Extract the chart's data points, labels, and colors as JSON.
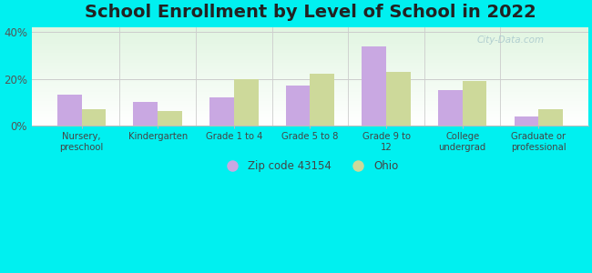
{
  "title": "School Enrollment by Level of School in 2022",
  "categories": [
    "Nursery,\npreschool",
    "Kindergarten",
    "Grade 1 to 4",
    "Grade 5 to 8",
    "Grade 9 to\n12",
    "College\nundergrad",
    "Graduate or\nprofessional"
  ],
  "zip_values": [
    13,
    10,
    12,
    17,
    34,
    15,
    4
  ],
  "ohio_values": [
    7,
    6,
    20,
    22,
    23,
    19,
    7
  ],
  "zip_color": "#c9a8e2",
  "ohio_color": "#cdd99a",
  "background_outer": "#00f0f0",
  "yticks": [
    0,
    20,
    40
  ],
  "ylim": [
    0,
    42
  ],
  "zip_label": "Zip code 43154",
  "ohio_label": "Ohio",
  "title_fontsize": 14,
  "watermark": "City-Data.com"
}
